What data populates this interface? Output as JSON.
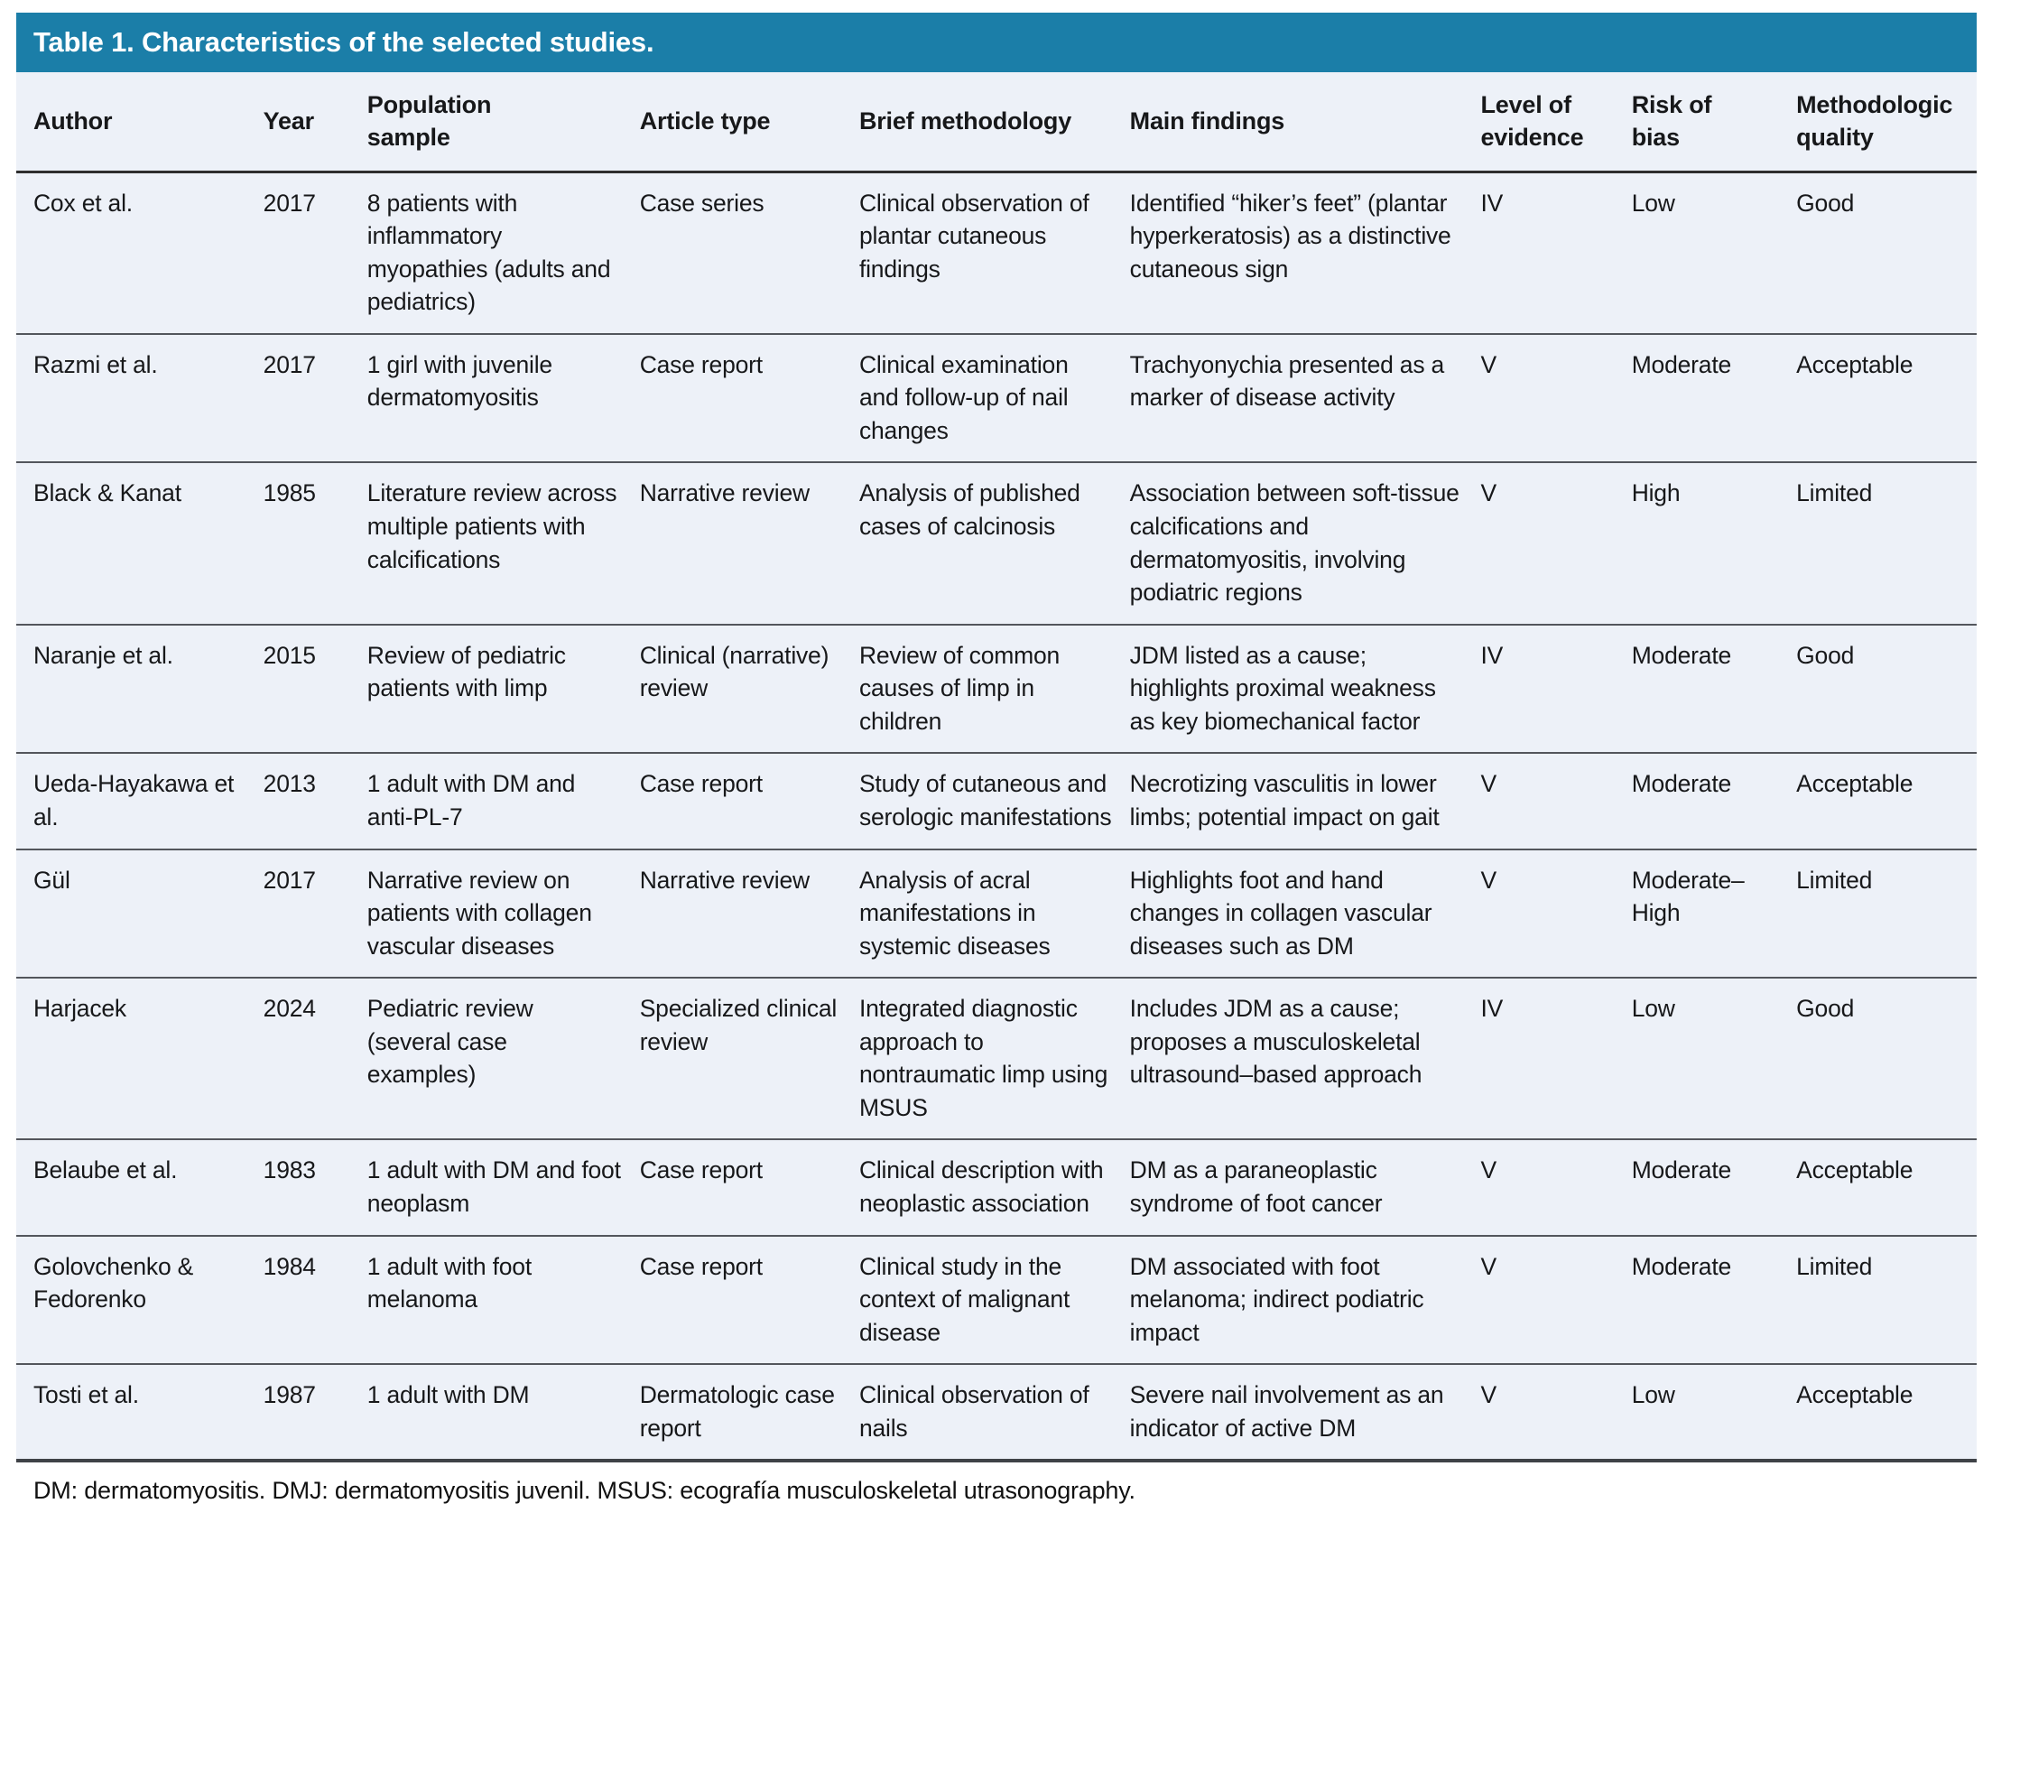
{
  "table": {
    "title": "Table 1. Characteristics of the selected studies.",
    "columns": [
      "Author",
      "Year",
      "Population\nsample",
      "Article type",
      "Brief methodology",
      "Main findings",
      "Level of\nevidence",
      "Risk of\nbias",
      "Methodologic\nquality"
    ],
    "rows": [
      [
        "Cox et al.",
        "2017",
        "8 patients with inflammatory myopathies (adults and pediatrics)",
        "Case series",
        "Clinical observation of plantar cutaneous findings",
        "Identified “hiker’s feet” (plantar hyperkeratosis) as a distinctive cutaneous sign",
        "IV",
        "Low",
        "Good"
      ],
      [
        "Razmi et al.",
        "2017",
        "1 girl with juvenile dermatomyositis",
        "Case report",
        "Clinical examination and follow-up of nail changes",
        "Trachyonychia presented as a marker of disease activity",
        "V",
        "Moderate",
        "Acceptable"
      ],
      [
        "Black & Kanat",
        "1985",
        "Literature review across multiple patients with calcifications",
        "Narrative review",
        "Analysis of published cases of calcinosis",
        "Association between soft-tissue calcifications and dermatomyositis, involving podiatric regions",
        "V",
        "High",
        "Limited"
      ],
      [
        "Naranje et al.",
        "2015",
        "Review of pediatric patients with limp",
        "Clinical (narrative) review",
        "Review of common causes of limp in children",
        "JDM listed as a cause; highlights proximal weakness as key biomechanical factor",
        "IV",
        "Moderate",
        "Good"
      ],
      [
        "Ueda-Hayakawa et al.",
        "2013",
        "1 adult with DM and anti-PL-7",
        "Case report",
        "Study of cutaneous and serologic manifestations",
        "Necrotizing vasculitis in lower limbs; potential impact on gait",
        "V",
        "Moderate",
        "Acceptable"
      ],
      [
        "Gül",
        "2017",
        "Narrative review on patients with collagen vascular diseases",
        "Narrative review",
        "Analysis of acral manifestations in systemic diseases",
        "Highlights foot and hand changes in collagen vascular diseases such as DM",
        "V",
        "Moderate–High",
        "Limited"
      ],
      [
        "Harjacek",
        "2024",
        "Pediatric review (several case examples)",
        "Specialized clinical review",
        "Integrated diagnostic approach to nontraumatic limp using MSUS",
        "Includes JDM as a cause; proposes a musculoskeletal ultrasound–based approach",
        "IV",
        "Low",
        "Good"
      ],
      [
        "Belaube et al.",
        "1983",
        "1 adult with DM and foot neoplasm",
        "Case report",
        "Clinical description with neoplastic association",
        "DM as a paraneoplastic syndrome of foot cancer",
        "V",
        "Moderate",
        "Acceptable"
      ],
      [
        "Golovchenko & Fedorenko",
        "1984",
        "1 adult with foot melanoma",
        "Case report",
        "Clinical study in the context of malignant disease",
        "DM associated with foot melanoma; indirect podiatric impact",
        "V",
        "Moderate",
        "Limited"
      ],
      [
        "Tosti et al.",
        "1987",
        "1 adult with DM",
        "Dermatologic case report",
        "Clinical observation of nails",
        "Severe nail involvement as an indicator of active DM",
        "V",
        "Low",
        "Acceptable"
      ]
    ],
    "footnote": "DM: dermatomyositis. DMJ: dermatomyositis juvenil. MSUS: ecografía musculoskeletal utrasonography.",
    "column_keys": [
      "author",
      "year",
      "population-sample",
      "article-type",
      "brief-methodology",
      "main-findings",
      "level-of-evidence",
      "risk-of-bias",
      "methodologic-quality"
    ]
  },
  "colors": {
    "title_bar_bg": "#1b7ea8",
    "title_text": "#ffffff",
    "row_bg": "#edf1f8",
    "rule": "#53565c"
  }
}
